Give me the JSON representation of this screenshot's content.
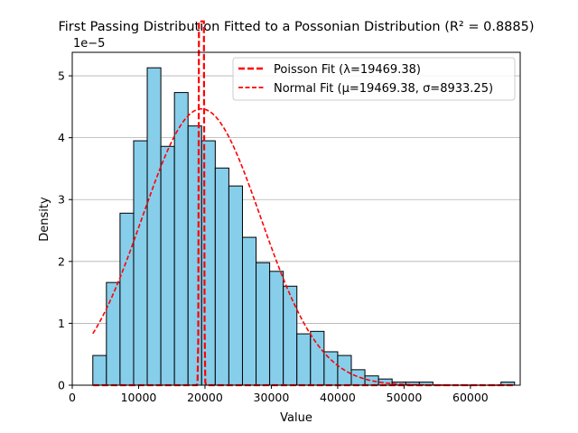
{
  "chart_data": {
    "type": "bar",
    "title": "First Passing Distribution Fitted to a Possonian Distribution (R² = 0.8885)",
    "xlabel": "Value",
    "ylabel": "Density",
    "y_offset_text": "1e−5",
    "xlim": [
      0,
      67500
    ],
    "ylim": [
      0,
      5.38
    ],
    "y_scale_note": "values in units of 1e-5",
    "x_ticks": [
      0,
      10000,
      20000,
      30000,
      40000,
      50000,
      60000
    ],
    "x_tick_labels": [
      "0",
      "10000",
      "20000",
      "30000",
      "40000",
      "50000",
      "60000"
    ],
    "y_ticks": [
      0,
      1,
      2,
      3,
      4,
      5
    ],
    "y_tick_labels": [
      "0",
      "1",
      "2",
      "3",
      "4",
      "5"
    ],
    "grid": "horizontal",
    "legend_position": "top-right",
    "bar_color": "#87CEEB",
    "bar_edge_color": "#000000",
    "fit_color": "#FF0000",
    "bins": {
      "start": 3100,
      "width": 2050,
      "values": [
        0.48,
        1.66,
        2.78,
        3.95,
        5.13,
        3.86,
        4.73,
        4.19,
        3.95,
        3.51,
        3.22,
        2.39,
        1.98,
        1.84,
        1.6,
        0.83,
        0.87,
        0.54,
        0.48,
        0.25,
        0.15,
        0.1,
        0.05,
        0.05,
        0.05,
        0.0,
        0.0,
        0.0,
        0.0,
        0.0,
        0.05
      ]
    },
    "series": [
      {
        "name": "Poisson Fit (λ=19469.38)",
        "style": "dashed-thick",
        "mu": 19469.38,
        "sigma": 139.53
      },
      {
        "name": "Normal Fit (μ=19469.38, σ=8933.25)",
        "style": "dashed",
        "mu": 19469.38,
        "sigma": 8933.25
      }
    ]
  }
}
